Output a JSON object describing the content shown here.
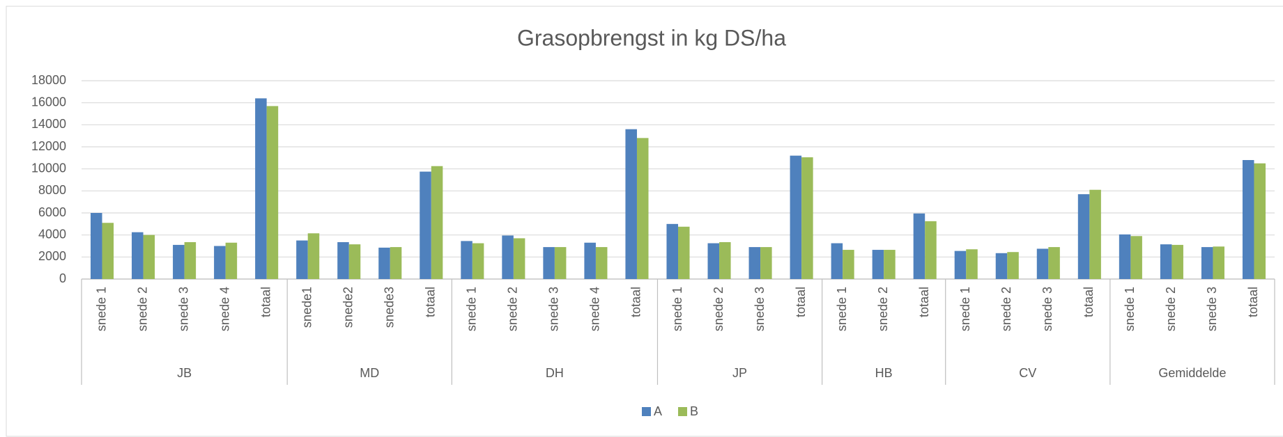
{
  "chart_data": {
    "type": "bar",
    "title": "Grasopbrengst in kg DS/ha",
    "groups": [
      {
        "name": "JB",
        "categories": [
          "snede 1",
          "snede 2",
          "snede 3",
          "snede 4",
          "totaal"
        ]
      },
      {
        "name": "MD",
        "categories": [
          "snede1",
          "snede2",
          "snede3",
          "totaal"
        ]
      },
      {
        "name": "DH",
        "categories": [
          "snede 1",
          "snede 2",
          "snede 3",
          "snede 4",
          "totaal"
        ]
      },
      {
        "name": "JP",
        "categories": [
          "snede 1",
          "snede 2",
          "snede 3",
          "totaal"
        ]
      },
      {
        "name": "HB",
        "categories": [
          "snede 1",
          "snede 2",
          "totaal"
        ]
      },
      {
        "name": "CV",
        "categories": [
          "snede 1",
          "snede 2",
          "snede 3",
          "totaal"
        ]
      },
      {
        "name": "Gemiddelde",
        "categories": [
          "snede 1",
          "snede 2",
          "snede 3",
          "totaal"
        ]
      }
    ],
    "series": [
      {
        "name": "A",
        "color": "#4f81bd",
        "values": [
          6000,
          4250,
          3100,
          3000,
          16400,
          3500,
          3350,
          2850,
          9750,
          3450,
          3950,
          2900,
          3300,
          13600,
          5000,
          3250,
          2900,
          11200,
          3250,
          2650,
          5950,
          2550,
          2350,
          2750,
          7700,
          4050,
          3150,
          2900,
          10800
        ]
      },
      {
        "name": "B",
        "color": "#9bbb59",
        "values": [
          5100,
          4000,
          3350,
          3300,
          15700,
          4150,
          3150,
          2900,
          10250,
          3250,
          3700,
          2900,
          2900,
          12800,
          4750,
          3350,
          2900,
          11050,
          2650,
          2650,
          5250,
          2700,
          2450,
          2900,
          8100,
          3900,
          3100,
          2950,
          10500
        ]
      }
    ],
    "ylim": [
      0,
      18000
    ],
    "yticks": [
      0,
      2000,
      4000,
      6000,
      8000,
      10000,
      12000,
      14000,
      16000,
      18000
    ],
    "grid": true,
    "legend": "bottom"
  }
}
